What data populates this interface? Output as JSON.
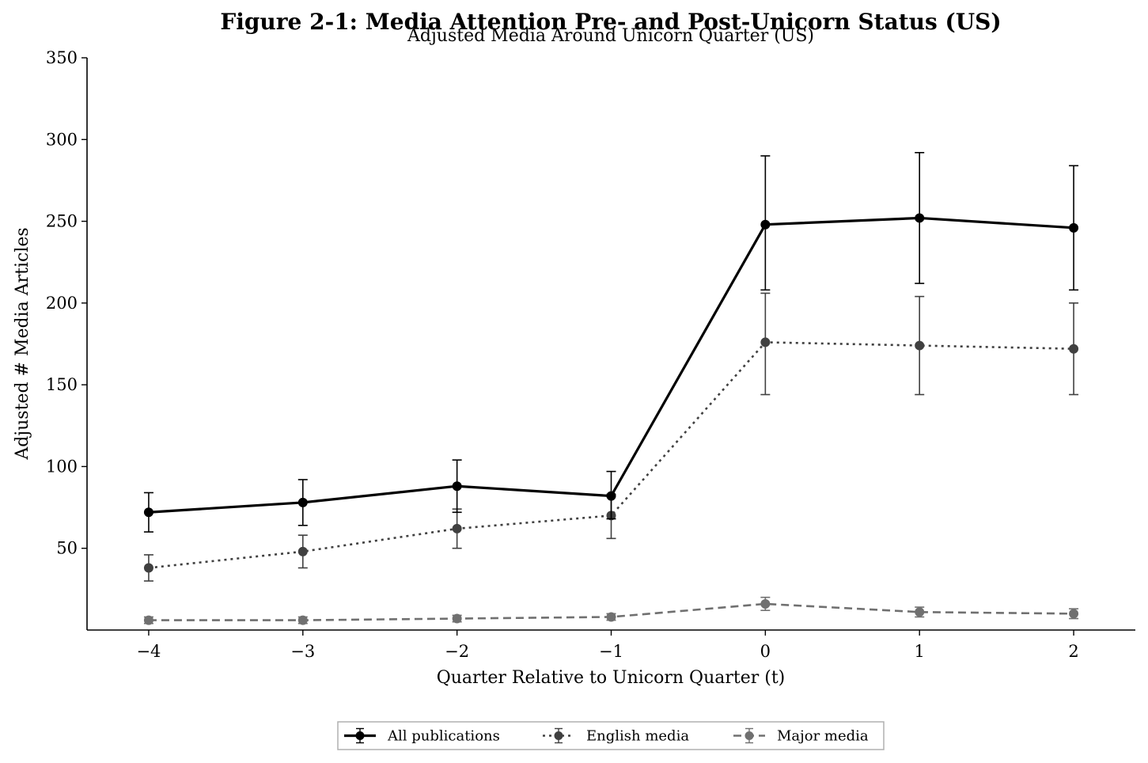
{
  "chart_data": {
    "type": "line",
    "title": "Figure 2-1: Media Attention Pre- and Post-Unicorn Status (US)",
    "subtitle": "Adjusted Media Around Unicorn Quarter (US)",
    "xlabel": "Quarter Relative to Unicorn Quarter (t)",
    "ylabel": "Adjusted # Media Articles",
    "x": [
      -4,
      -3,
      -2,
      -1,
      0,
      1,
      2
    ],
    "x_tick_labels": [
      "−4",
      "−3",
      "−2",
      "−1",
      "0",
      "1",
      "2"
    ],
    "xlim": [
      -4.4,
      2.4
    ],
    "ylim": [
      0,
      350
    ],
    "y_ticks": [
      50,
      100,
      150,
      200,
      250,
      300,
      350
    ],
    "y_tick_labels": [
      "50",
      "100",
      "150",
      "200",
      "250",
      "300",
      "350"
    ],
    "grid": false,
    "legend_position": "bottom-center",
    "series": [
      {
        "name": "All publications",
        "color": "#000000",
        "line_style": "solid",
        "values": [
          72,
          78,
          88,
          82,
          248,
          252,
          246
        ],
        "error_low": [
          60,
          64,
          72,
          68,
          208,
          212,
          208
        ],
        "error_high": [
          84,
          92,
          104,
          97,
          290,
          292,
          284
        ]
      },
      {
        "name": "English media",
        "color": "#404040",
        "line_style": "dotted",
        "values": [
          38,
          48,
          62,
          70,
          176,
          174,
          172
        ],
        "error_low": [
          30,
          38,
          50,
          56,
          144,
          144,
          144
        ],
        "error_high": [
          46,
          58,
          74,
          83,
          206,
          204,
          200
        ]
      },
      {
        "name": "Major media",
        "color": "#707070",
        "line_style": "dashed",
        "values": [
          6,
          6,
          7,
          8,
          16,
          11,
          10
        ],
        "error_low": [
          4,
          4,
          5,
          6,
          12,
          8,
          7
        ],
        "error_high": [
          8,
          8,
          9,
          10,
          20,
          14,
          13
        ]
      }
    ]
  }
}
